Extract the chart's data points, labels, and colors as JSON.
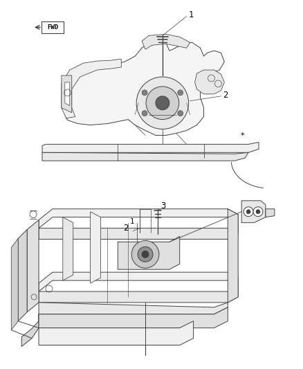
{
  "background_color": "#ffffff",
  "fig_width": 4.38,
  "fig_height": 5.33,
  "dpi": 100,
  "line_color": "#404040",
  "light_line_color": "#888888",
  "label_fontsize": 8.5,
  "fwd_fontsize": 6.5,
  "top_diagram": {
    "fwd_text": "FWD",
    "label1": "1",
    "label2": "2",
    "star": "*"
  },
  "bottom_diagram": {
    "label1": "1",
    "label2": "2",
    "label3": "3"
  }
}
